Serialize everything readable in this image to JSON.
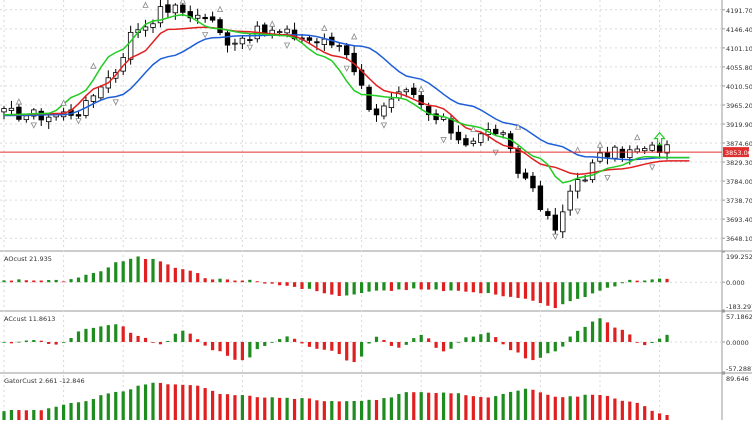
{
  "colors": {
    "background": "#ffffff",
    "grid": "#d9d9d9",
    "candle": "#000000",
    "alligator_jaw": "#1e5fd8",
    "alligator_teeth": "#e02020",
    "alligator_lips": "#22cc22",
    "hist_up": "#1e8c1e",
    "hist_down": "#e02020",
    "price_line": "#e03030",
    "price_tag_bg": "#e03030",
    "price_tag_text": "#ffffff",
    "fractal": "#8a8a8a",
    "arrow": "#22cc22",
    "axis_text": "#333333"
  },
  "chart_data": [
    {
      "id": "price",
      "type": "candlestick",
      "title": "",
      "ylim": [
        3620,
        4215
      ],
      "y_ticks": [
        4191.7,
        4146.4,
        4101.1,
        4055.8,
        4010.5,
        3965.2,
        3919.9,
        3874.6,
        3829.3,
        3784.0,
        3738.7,
        3693.4,
        3648.1
      ],
      "y_tick_labels": [
        "4191.70",
        "4146.40",
        "4101.10",
        "4055.80",
        "4010.50",
        "3965.20",
        "3919.90",
        "3874.60",
        "3829.30",
        "3784.00",
        "3738.70",
        "3693.40",
        "3648.10"
      ],
      "current_price": 3853.0,
      "current_price_label": "3853.00",
      "candle_count": 90,
      "anchors": [
        [
          0,
          3945
        ],
        [
          6,
          3940
        ],
        [
          10,
          3950
        ],
        [
          14,
          4030
        ],
        [
          18,
          4150
        ],
        [
          22,
          4195
        ],
        [
          27,
          4175
        ],
        [
          30,
          4120
        ],
        [
          35,
          4140
        ],
        [
          45,
          4110
        ],
        [
          50,
          3950
        ],
        [
          54,
          3990
        ],
        [
          58,
          3930
        ],
        [
          62,
          3880
        ],
        [
          66,
          3905
        ],
        [
          70,
          3790
        ],
        [
          74,
          3670
        ],
        [
          77,
          3790
        ],
        [
          81,
          3850
        ],
        [
          89,
          3862
        ]
      ],
      "series": [
        {
          "key": "jaw",
          "shift": 8,
          "anchors": [
            [
              0,
              3940
            ],
            [
              8,
              3942
            ],
            [
              15,
              3985
            ],
            [
              22,
              4080
            ],
            [
              28,
              4125
            ],
            [
              32,
              4130
            ],
            [
              40,
              4132
            ],
            [
              48,
              4105
            ],
            [
              55,
              4030
            ],
            [
              62,
              3965
            ],
            [
              68,
              3920
            ],
            [
              74,
              3870
            ],
            [
              78,
              3842
            ],
            [
              84,
              3835
            ],
            [
              89,
              3840
            ]
          ]
        },
        {
          "key": "teeth",
          "shift": 5,
          "anchors": [
            [
              0,
              3942
            ],
            [
              8,
              3945
            ],
            [
              13,
              4010
            ],
            [
              18,
              4085
            ],
            [
              22,
              4145
            ],
            [
              27,
              4150
            ],
            [
              32,
              4140
            ],
            [
              38,
              4132
            ],
            [
              45,
              4080
            ],
            [
              52,
              3995
            ],
            [
              58,
              3962
            ],
            [
              63,
              3905
            ],
            [
              68,
              3865
            ],
            [
              73,
              3820
            ],
            [
              77,
              3800
            ],
            [
              82,
              3812
            ],
            [
              89,
              3832
            ]
          ]
        },
        {
          "key": "lips",
          "shift": 3,
          "anchors": [
            [
              0,
              3942
            ],
            [
              6,
              3945
            ],
            [
              10,
              3990
            ],
            [
              15,
              4090
            ],
            [
              20,
              4165
            ],
            [
              24,
              4180
            ],
            [
              28,
              4148
            ],
            [
              33,
              4135
            ],
            [
              38,
              4130
            ],
            [
              43,
              4080
            ],
            [
              48,
              3990
            ],
            [
              53,
              3982
            ],
            [
              58,
              3940
            ],
            [
              63,
              3915
            ],
            [
              67,
              3888
            ],
            [
              72,
              3838
            ],
            [
              75,
              3780
            ],
            [
              78,
              3795
            ],
            [
              82,
              3818
            ],
            [
              86,
              3842
            ],
            [
              89,
              3840
            ]
          ]
        }
      ],
      "fractals_up": [
        [
          2,
          3965
        ],
        [
          8,
          3962
        ],
        [
          12,
          4050
        ],
        [
          19,
          4195
        ],
        [
          24,
          4205
        ],
        [
          29,
          4185
        ],
        [
          36,
          4150
        ],
        [
          43,
          4140
        ],
        [
          47,
          4120
        ],
        [
          56,
          3995
        ],
        [
          63,
          3900
        ],
        [
          69,
          3905
        ],
        [
          77,
          3850
        ],
        [
          80,
          3862
        ],
        [
          85,
          3880
        ]
      ],
      "fractals_down": [
        [
          4,
          3925
        ],
        [
          10,
          3935
        ],
        [
          15,
          3980
        ],
        [
          27,
          4140
        ],
        [
          33,
          4110
        ],
        [
          38,
          4115
        ],
        [
          46,
          4060
        ],
        [
          51,
          3925
        ],
        [
          59,
          3890
        ],
        [
          66,
          3860
        ],
        [
          74,
          3660
        ],
        [
          77,
          3720
        ],
        [
          81,
          3800
        ],
        [
          87,
          3825
        ]
      ],
      "signal_arrow_index": 88
    },
    {
      "id": "aocust",
      "type": "bar",
      "title": "AOcust 21.935",
      "ylim": [
        -183.297,
        199.252
      ],
      "y_ticks": [
        199.252,
        0.0,
        -183.297
      ],
      "y_tick_labels": [
        "199.252",
        "0.000",
        "-183.297"
      ],
      "anchors": [
        [
          0,
          15
        ],
        [
          8,
          10
        ],
        [
          12,
          60
        ],
        [
          16,
          140
        ],
        [
          18,
          165
        ],
        [
          20,
          150
        ],
        [
          24,
          90
        ],
        [
          28,
          20
        ],
        [
          32,
          15
        ],
        [
          36,
          -10
        ],
        [
          40,
          -40
        ],
        [
          45,
          -90
        ],
        [
          50,
          -60
        ],
        [
          55,
          -45
        ],
        [
          60,
          -55
        ],
        [
          65,
          -75
        ],
        [
          70,
          -110
        ],
        [
          74,
          -165
        ],
        [
          77,
          -110
        ],
        [
          81,
          -40
        ],
        [
          84,
          10
        ],
        [
          88,
          20
        ],
        [
          89,
          22
        ]
      ]
    },
    {
      "id": "accust",
      "type": "bar",
      "title": "ACcust 11.8613",
      "ylim": [
        -57.2887,
        57.1862
      ],
      "y_ticks": [
        57.1862,
        0.0,
        -57.2887
      ],
      "y_tick_labels": [
        "57.1862",
        "0.0000",
        "-57.2887"
      ],
      "anchors": [
        [
          0,
          -2
        ],
        [
          4,
          4
        ],
        [
          7,
          -6
        ],
        [
          11,
          24
        ],
        [
          15,
          35
        ],
        [
          18,
          12
        ],
        [
          21,
          -6
        ],
        [
          24,
          22
        ],
        [
          28,
          -14
        ],
        [
          32,
          -36
        ],
        [
          35,
          -8
        ],
        [
          38,
          12
        ],
        [
          41,
          -10
        ],
        [
          44,
          -18
        ],
        [
          47,
          -40
        ],
        [
          50,
          10
        ],
        [
          53,
          -12
        ],
        [
          56,
          14
        ],
        [
          59,
          -18
        ],
        [
          62,
          8
        ],
        [
          65,
          18
        ],
        [
          68,
          -14
        ],
        [
          71,
          -36
        ],
        [
          74,
          -18
        ],
        [
          77,
          22
        ],
        [
          80,
          45
        ],
        [
          83,
          22
        ],
        [
          86,
          -6
        ],
        [
          89,
          12
        ]
      ]
    },
    {
      "id": "gatorcust",
      "type": "bar",
      "title": "GatorCust 2.661 -12.846",
      "ylim": [
        0,
        89.646
      ],
      "y_ticks": [
        89.646,
        0
      ],
      "y_tick_labels": [
        "89.646",
        ""
      ],
      "anchors": [
        [
          0,
          18
        ],
        [
          5,
          20
        ],
        [
          10,
          35
        ],
        [
          15,
          55
        ],
        [
          20,
          72
        ],
        [
          25,
          68
        ],
        [
          30,
          50
        ],
        [
          35,
          45
        ],
        [
          40,
          42
        ],
        [
          45,
          35
        ],
        [
          50,
          40
        ],
        [
          55,
          55
        ],
        [
          60,
          52
        ],
        [
          65,
          45
        ],
        [
          70,
          60
        ],
        [
          75,
          45
        ],
        [
          80,
          50
        ],
        [
          84,
          35
        ],
        [
          89,
          10
        ]
      ]
    }
  ]
}
